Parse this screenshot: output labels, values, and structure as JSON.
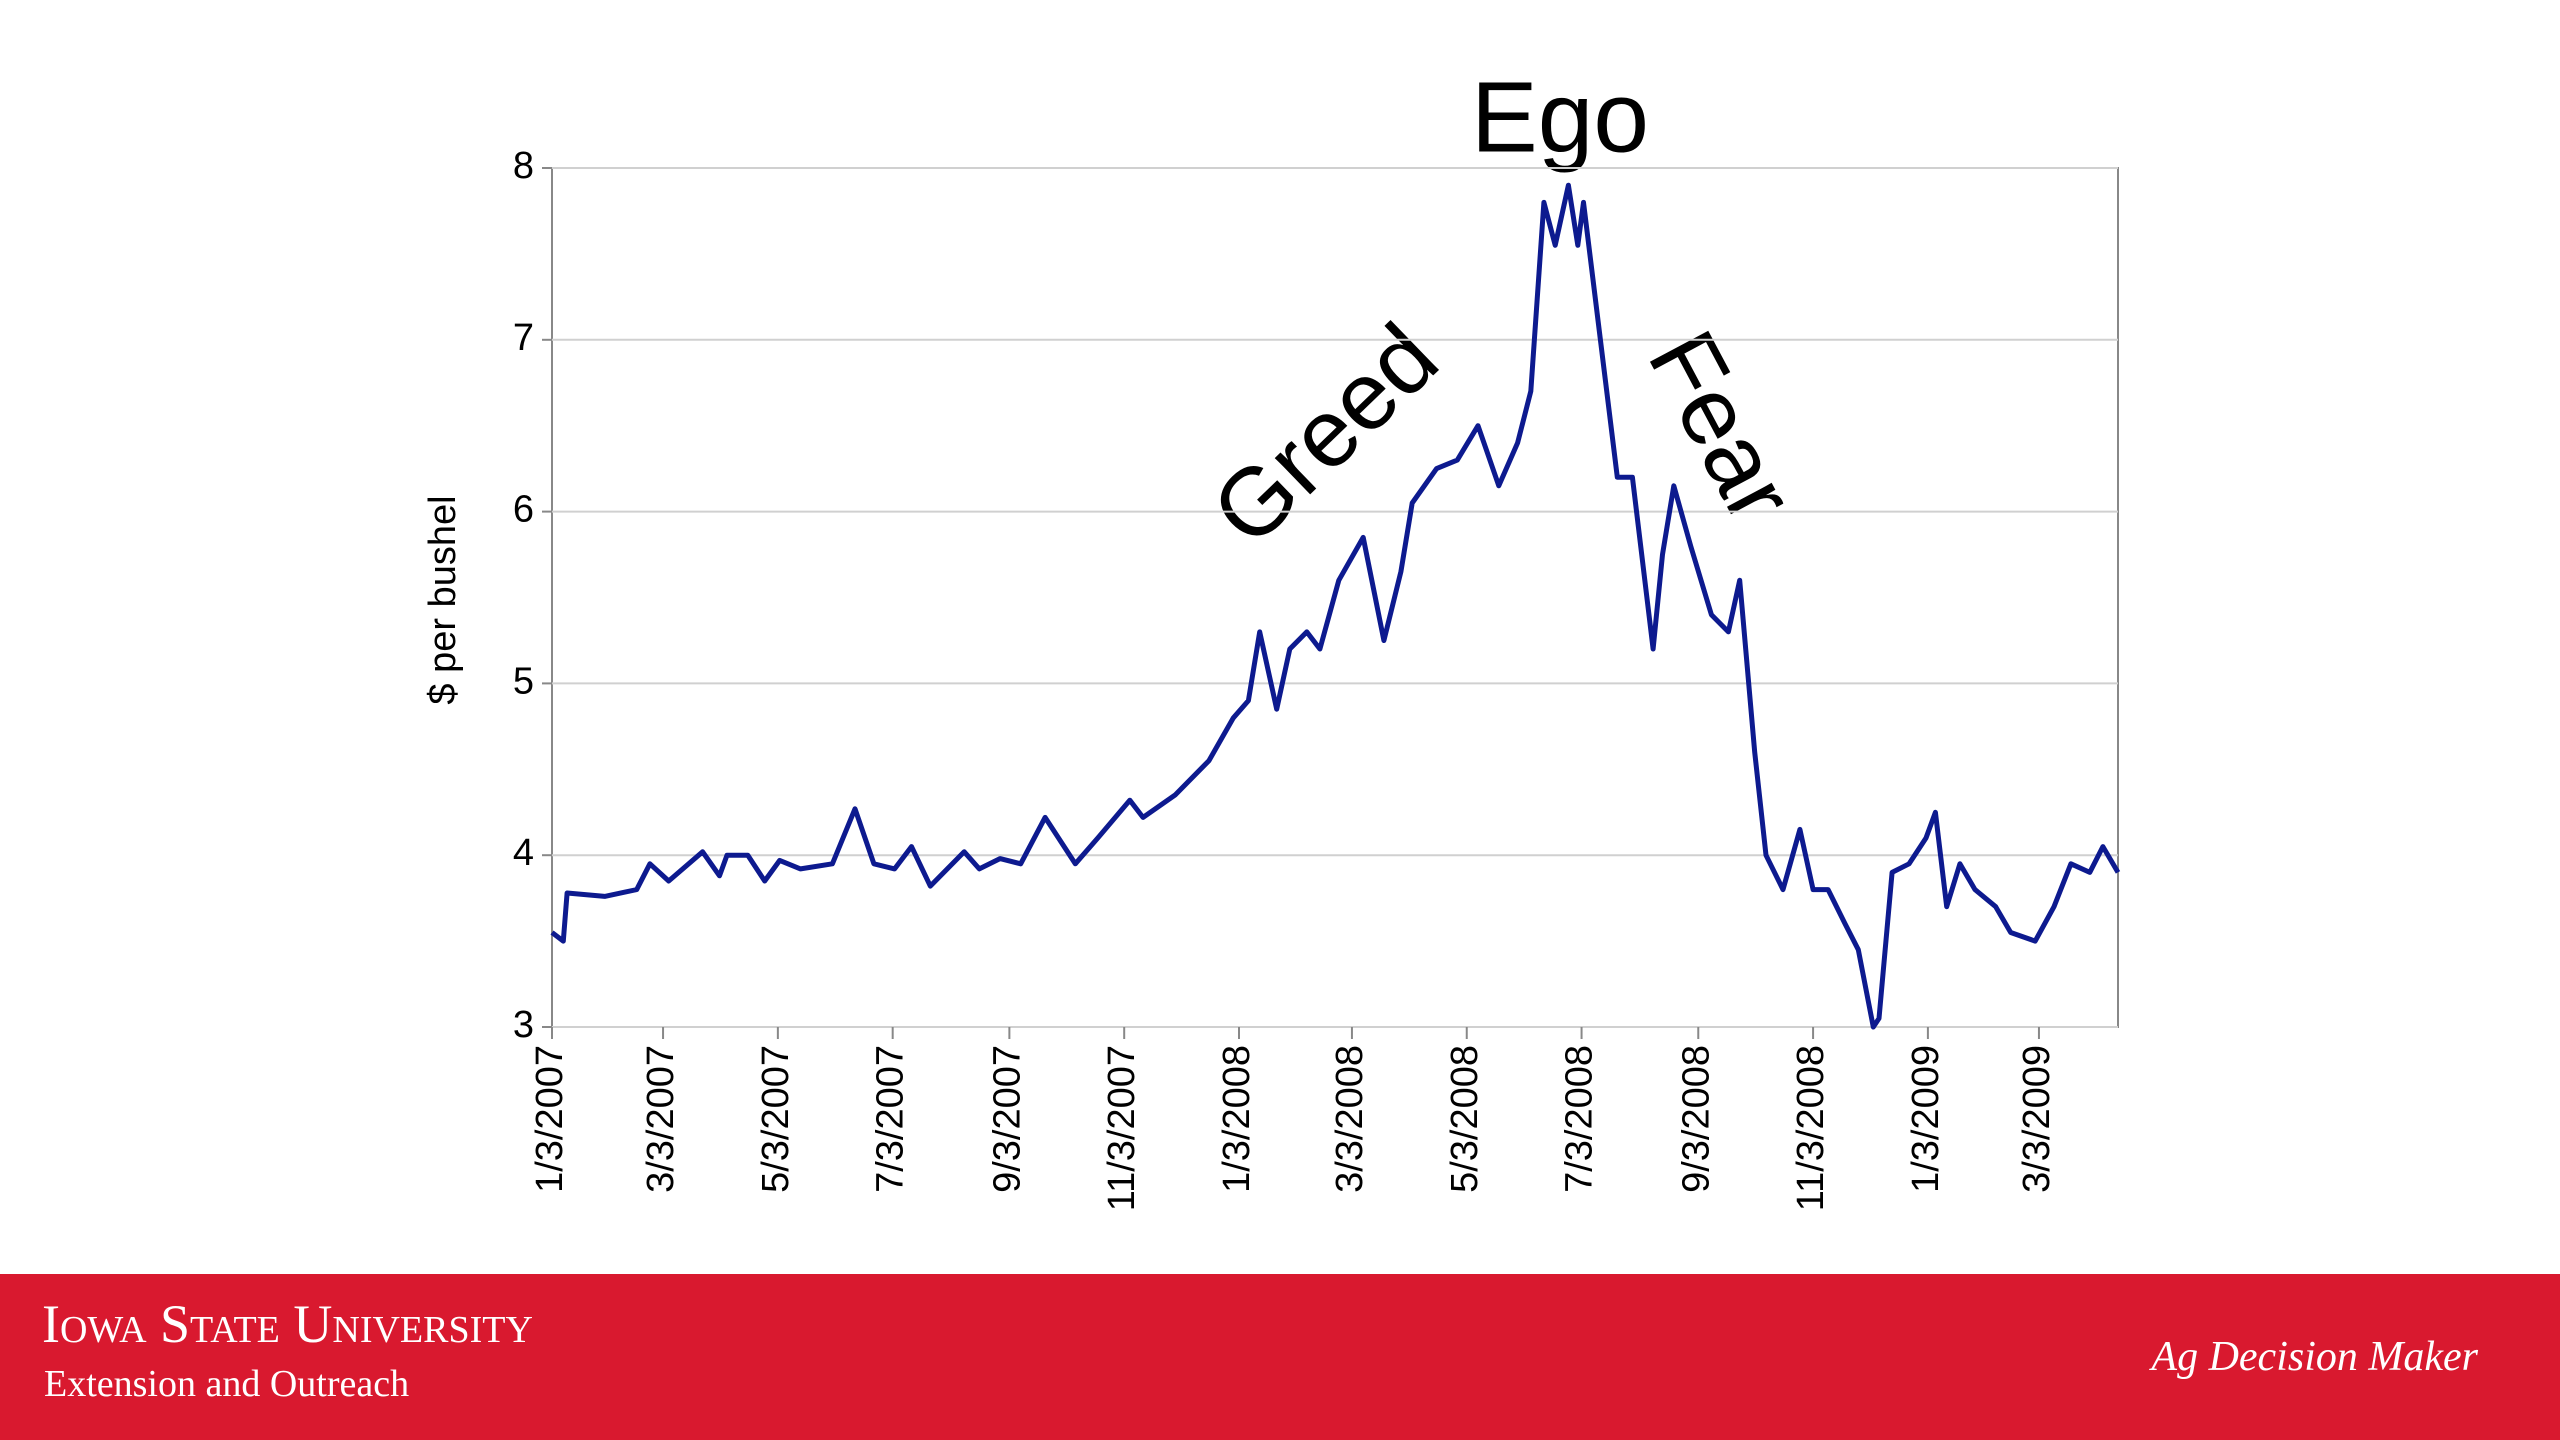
{
  "chart_data": {
    "type": "line",
    "y_label": "$ per bushel",
    "annotations": [
      "Ego",
      "Greed",
      "Fear"
    ],
    "color": "#0d1a8f",
    "x": [
      "1/3/2007",
      "1/9/2007",
      "1/11/2007",
      "1/31/2007",
      "2/17/2007",
      "2/24/2007",
      "3/6/2007",
      "3/24/2007",
      "4/2/2007",
      "4/6/2007",
      "4/17/2007",
      "4/26/2007",
      "5/4/2007",
      "5/15/2007",
      "6/1/2007",
      "6/13/2007",
      "6/23/2007",
      "7/4/2007",
      "7/13/2007",
      "7/23/2007",
      "8/10/2007",
      "8/18/2007",
      "8/29/2007",
      "9/9/2007",
      "9/22/2007",
      "10/8/2007",
      "10/20/2007",
      "11/6/2007",
      "11/13/2007",
      "11/30/2007",
      "12/18/2007",
      "12/31/2007",
      "1/8/2008",
      "1/14/2008",
      "1/23/2008",
      "1/30/2008",
      "2/8/2008",
      "2/15/2008",
      "2/25/2008",
      "3/9/2008",
      "3/20/2008",
      "3/29/2008",
      "4/4/2008",
      "4/17/2008",
      "4/28/2008",
      "5/9/2008",
      "5/20/2008",
      "5/30/2008",
      "6/6/2008",
      "6/13/2008",
      "6/19/2008",
      "6/26/2008",
      "7/1/2008",
      "7/4/2008",
      "7/13/2008",
      "7/22/2008",
      "7/30/2008",
      "8/10/2008",
      "8/15/2008",
      "8/21/2008",
      "8/30/2008",
      "9/10/2008",
      "9/19/2008",
      "9/25/2008",
      "10/3/2008",
      "10/9/2008",
      "10/18/2008",
      "10/27/2008",
      "11/3/2008",
      "11/11/2008",
      "11/20/2008",
      "11/27/2008",
      "12/5/2008",
      "12/8/2008",
      "12/15/2008",
      "12/24/2008",
      "1/2/2009",
      "1/7/2009",
      "1/13/2009",
      "1/20/2009",
      "1/28/2009",
      "2/8/2009",
      "2/16/2009",
      "3/1/2009",
      "3/11/2009",
      "3/20/2009",
      "3/30/2009",
      "4/6/2009",
      "4/14/2009"
    ],
    "values": [
      3.55,
      3.5,
      3.78,
      3.76,
      3.8,
      3.95,
      3.85,
      4.02,
      3.88,
      4.0,
      4.0,
      3.85,
      3.97,
      3.92,
      3.95,
      4.27,
      3.95,
      3.92,
      4.05,
      3.82,
      4.02,
      3.92,
      3.98,
      3.95,
      4.22,
      3.95,
      4.1,
      4.32,
      4.22,
      4.35,
      4.55,
      4.8,
      4.9,
      5.3,
      4.85,
      5.2,
      5.3,
      5.2,
      5.6,
      5.85,
      5.25,
      5.65,
      6.05,
      6.25,
      6.3,
      6.5,
      6.15,
      6.4,
      6.7,
      7.8,
      7.55,
      7.9,
      7.55,
      7.8,
      7.0,
      6.2,
      6.2,
      5.2,
      5.75,
      6.15,
      5.8,
      5.4,
      5.3,
      5.6,
      4.6,
      4.0,
      3.8,
      4.15,
      3.8,
      3.8,
      3.6,
      3.45,
      3.0,
      3.05,
      3.9,
      3.95,
      4.1,
      4.25,
      3.7,
      3.95,
      3.8,
      3.7,
      3.55,
      3.5,
      3.7,
      3.95,
      3.9,
      4.05,
      3.9
    ],
    "xlim": [
      "1/3/2007",
      "4/14/2009"
    ],
    "xticks": [
      "1/3/2007",
      "3/3/2007",
      "5/3/2007",
      "7/3/2007",
      "9/3/2007",
      "11/3/2007",
      "1/3/2008",
      "3/3/2008",
      "5/3/2008",
      "7/3/2008",
      "9/3/2008",
      "11/3/2008",
      "1/3/2009",
      "3/3/2009"
    ],
    "ylim": [
      3,
      8
    ],
    "yticks": [
      3,
      4,
      5,
      6,
      7,
      8
    ],
    "grid": true
  },
  "footer": {
    "org": "Iowa State University",
    "unit": "Extension and Outreach",
    "brand": "Ag Decision Maker"
  }
}
